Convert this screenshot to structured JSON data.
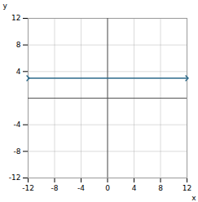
{
  "chart_data": {
    "type": "line",
    "x": [
      -12,
      12
    ],
    "series": [
      {
        "values": [
          3,
          3
        ],
        "color": "#2E6B8A",
        "marker": "arrow"
      }
    ],
    "xlabel": "x",
    "ylabel": "y",
    "xlim": [
      -12,
      12
    ],
    "ylim": [
      -12,
      12
    ],
    "xticks": [
      -12,
      -8,
      -4,
      0,
      4,
      8,
      12
    ],
    "yticks": [
      -12,
      -8,
      -4,
      4,
      8,
      12
    ],
    "grid": true
  }
}
